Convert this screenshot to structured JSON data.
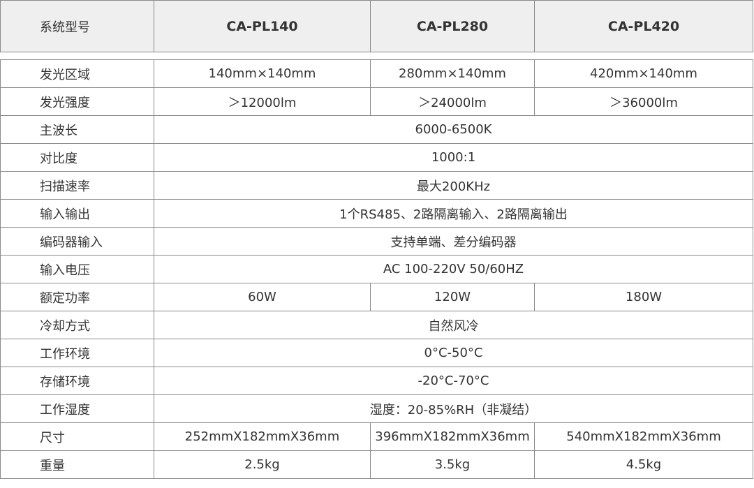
{
  "header": {
    "label": "系统型号",
    "models": [
      "CA-PL140",
      "CA-PL280",
      "CA-PL420"
    ]
  },
  "rows": [
    {
      "label": "发光区域",
      "values": [
        "140mm×140mm",
        "280mm×140mm",
        "420mm×140mm"
      ]
    },
    {
      "label": "发光强度",
      "values": [
        "＞12000lm",
        "＞24000lm",
        "＞36000lm"
      ]
    },
    {
      "label": "主波长",
      "values": [
        "6000-6500K"
      ]
    },
    {
      "label": "对比度",
      "values": [
        "1000:1"
      ]
    },
    {
      "label": "扫描速率",
      "values": [
        "最大200KHz"
      ]
    },
    {
      "label": "输入输出",
      "values": [
        "1个RS485、2路隔离输入、2路隔离输出"
      ]
    },
    {
      "label": "编码器输入",
      "values": [
        "支持单端、差分编码器"
      ]
    },
    {
      "label": "输入电压",
      "values": [
        "AC 100-220V  50/60HZ"
      ]
    },
    {
      "label": "额定功率",
      "values": [
        "60W",
        "120W",
        "180W"
      ]
    },
    {
      "label": "冷却方式",
      "values": [
        "自然风冷"
      ]
    },
    {
      "label": "工作环境",
      "values": [
        "0°C-50°C"
      ]
    },
    {
      "label": "存储环境",
      "values": [
        "-20°C-70°C"
      ]
    },
    {
      "label": "工作湿度",
      "values": [
        "湿度：20-85%RH（非凝结）"
      ]
    },
    {
      "label": "尺寸",
      "values": [
        "252mmX182mmX36mm",
        "396mmX182mmX36mm",
        "540mmX182mmX36mm"
      ]
    },
    {
      "label": "重量",
      "values": [
        "2.5kg",
        "3.5kg",
        "4.5kg"
      ]
    }
  ]
}
